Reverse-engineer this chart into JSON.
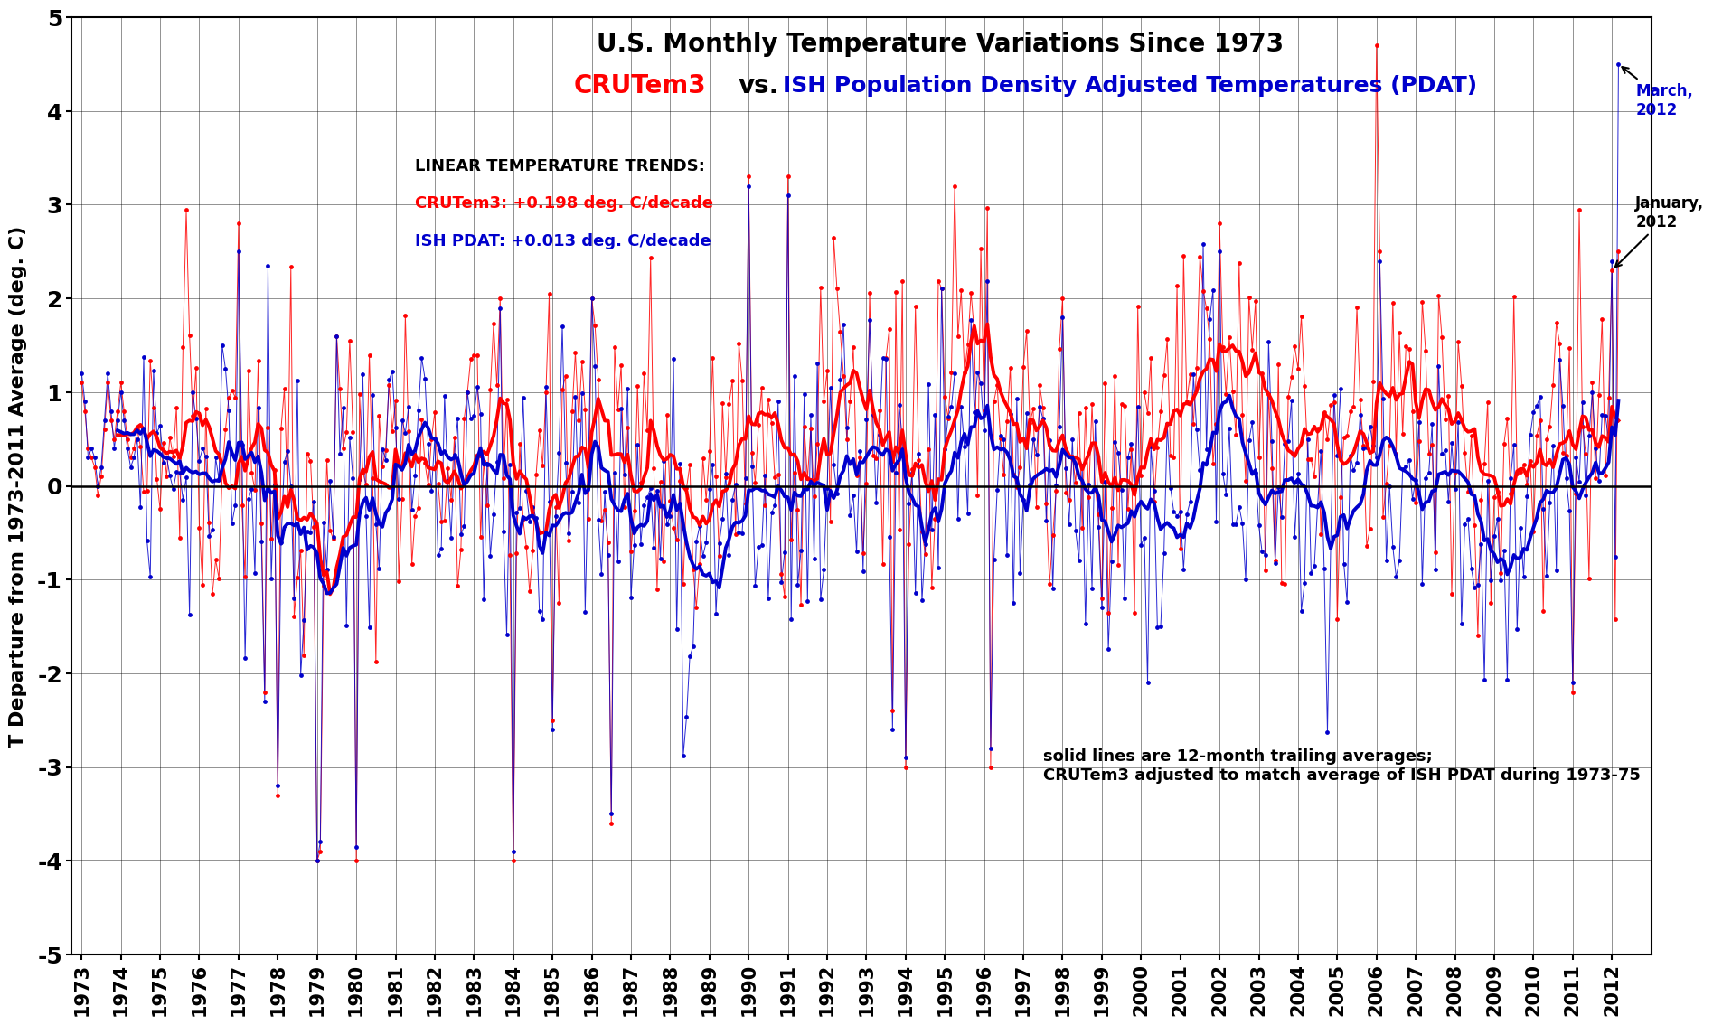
{
  "title_line1": "U.S. Monthly Temperature Variations Since 1973",
  "title_line2_part1": "CRUTem3",
  "title_line2_vs": "  vs.  ",
  "title_line2_part2": "ISH Population Density Adjusted Temperatures (PDAT)",
  "ylabel": "T Departure from 1973-2011 Average (deg. C)",
  "ylim": [
    -5,
    5
  ],
  "xlim_start": 1972.75,
  "xlim_end": 2013.0,
  "trend_label": "LINEAR TEMPERATURE TRENDS:",
  "trend_cru": "CRUTem3: +0.198 deg. C/decade",
  "trend_pdat": "ISH PDAT: +0.013 deg. C/decade",
  "note_text": "solid lines are 12-month trailing averages;\nCRUTem3 adjusted to match average of ISH PDAT during 1973-75",
  "annotation_march": "March,\n2012",
  "annotation_jan": "January,\n2012",
  "color_cru": "#FF0000",
  "color_pdat": "#0000CC",
  "color_background": "#FFFFFF",
  "start_year": 1973,
  "cru_trend_per_decade": 0.198,
  "pdat_trend_per_decade": 0.013
}
